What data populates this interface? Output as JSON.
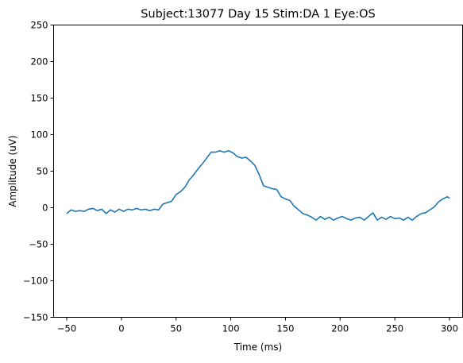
{
  "chart_data": {
    "type": "line",
    "title": "Subject:13077 Day 15 Stim:DA 1 Eye:OS",
    "xlabel": "Time (ms)",
    "ylabel": "Amplitude (uV)",
    "xlim": [
      -62,
      312
    ],
    "ylim": [
      -150,
      250
    ],
    "x_ticks": [
      -50,
      0,
      50,
      100,
      150,
      200,
      250,
      300
    ],
    "y_ticks": [
      -150,
      -100,
      -50,
      0,
      50,
      100,
      150,
      200,
      250
    ],
    "x_tick_labels": [
      "−50",
      "0",
      "50",
      "100",
      "150",
      "200",
      "250",
      "300"
    ],
    "y_tick_labels": [
      "−150",
      "−100",
      "−50",
      "0",
      "50",
      "100",
      "150",
      "200",
      "250"
    ],
    "grid": false,
    "series": [
      {
        "color": "#1f77b4",
        "x": [
          -50,
          -46,
          -42,
          -38,
          -34,
          -30,
          -26,
          -22,
          -18,
          -14,
          -10,
          -6,
          -2,
          2,
          6,
          10,
          14,
          18,
          22,
          26,
          30,
          34,
          38,
          42,
          46,
          50,
          54,
          58,
          62,
          66,
          70,
          74,
          78,
          82,
          86,
          90,
          94,
          98,
          102,
          106,
          110,
          114,
          118,
          122,
          126,
          130,
          134,
          138,
          142,
          146,
          150,
          154,
          158,
          162,
          166,
          170,
          174,
          178,
          182,
          186,
          190,
          194,
          198,
          202,
          206,
          210,
          214,
          218,
          222,
          226,
          230,
          234,
          238,
          242,
          246,
          250,
          254,
          258,
          262,
          266,
          270,
          274,
          278,
          282,
          286,
          290,
          294,
          298,
          300
        ],
        "y": [
          -8,
          -3,
          -5,
          -4,
          -5,
          -2,
          -1,
          -4,
          -2,
          -8,
          -3,
          -6,
          -2,
          -5,
          -2,
          -3,
          -1,
          -3,
          -2,
          -4,
          -2,
          -3,
          5,
          7,
          9,
          18,
          22,
          28,
          38,
          45,
          53,
          60,
          68,
          76,
          76,
          78,
          76,
          78,
          75,
          70,
          68,
          69,
          64,
          58,
          45,
          30,
          28,
          26,
          25,
          15,
          12,
          10,
          2,
          -3,
          -8,
          -10,
          -13,
          -17,
          -12,
          -16,
          -13,
          -17,
          -14,
          -12,
          -15,
          -17,
          -14,
          -13,
          -17,
          -12,
          -7,
          -17,
          -13,
          -16,
          -12,
          -15,
          -14,
          -17,
          -13,
          -17,
          -12,
          -8,
          -7,
          -3,
          1,
          8,
          12,
          15,
          13
        ]
      }
    ]
  }
}
